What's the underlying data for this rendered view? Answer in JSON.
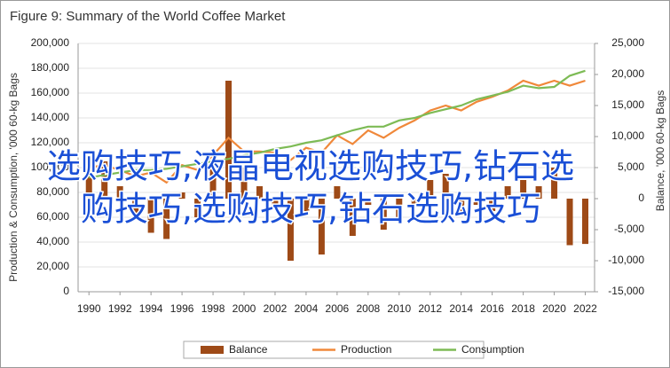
{
  "chart_data": {
    "type": "bar-line-combo",
    "title": "Figure 9: Summary of the World Coffee Market",
    "y_label": "Production & Consumption, '000 60-kg Bags",
    "y2_label": "Balance, '000 60-kg Bags",
    "x": [
      1990,
      1991,
      1992,
      1993,
      1994,
      1995,
      1996,
      1997,
      1998,
      1999,
      2000,
      2001,
      2002,
      2003,
      2004,
      2005,
      2006,
      2007,
      2008,
      2009,
      2010,
      2011,
      2012,
      2013,
      2014,
      2015,
      2016,
      2017,
      2018,
      2019,
      2020,
      2021,
      2022
    ],
    "xlim": [
      1989.3,
      2022.6
    ],
    "xticks": [
      1990,
      1992,
      1994,
      1996,
      1998,
      2000,
      2002,
      2004,
      2006,
      2008,
      2010,
      2012,
      2014,
      2016,
      2018,
      2020,
      2022
    ],
    "ylim": [
      0,
      200000
    ],
    "yticks": [
      0,
      {
        "value": 20000,
        "label": "20,000"
      },
      {
        "value": 40000,
        "label": "40,000"
      },
      {
        "value": 60000,
        "label": "60,000"
      },
      {
        "value": 80000,
        "label": "80,000"
      },
      {
        "value": 100000,
        "label": "100,000"
      },
      {
        "value": 120000,
        "label": "120,000"
      },
      {
        "value": 140000,
        "label": "140,000"
      },
      {
        "value": 160000,
        "label": "160,000"
      },
      {
        "value": 180000,
        "label": "180,000"
      },
      {
        "value": 200000,
        "label": "200,000"
      }
    ],
    "y2lim": [
      -15000,
      25000
    ],
    "y2ticks": [
      {
        "value": -15000,
        "label": "-15,000"
      },
      {
        "value": -10000,
        "label": "-10,000"
      },
      {
        "value": -5000,
        "label": "-5,000"
      },
      0,
      {
        "value": 5000,
        "label": "5,000"
      },
      {
        "value": 10000,
        "label": "10,000"
      },
      {
        "value": 15000,
        "label": "15,000"
      },
      {
        "value": 20000,
        "label": "20,000"
      },
      {
        "value": 25000,
        "label": "25,000"
      }
    ],
    "grid": true,
    "legend": "bottom",
    "series": [
      {
        "name": "Balance",
        "type": "bar",
        "axis": "y2",
        "color": "#9e4a17",
        "values": [
          5000,
          6000,
          2000,
          -3000,
          -5500,
          -6500,
          1000,
          -3000,
          5000,
          19000,
          5000,
          2000,
          -1000,
          -10000,
          -2000,
          -9000,
          2000,
          -6000,
          -1000,
          -5000,
          -3000,
          -1000,
          3000,
          4000,
          -2000,
          -1000,
          -2000,
          2000,
          3000,
          2000,
          5000,
          -7500,
          -7300
        ]
      },
      {
        "name": "Production",
        "type": "line",
        "color": "#f0883a",
        "values": [
          100000,
          102000,
          98000,
          93000,
          96000,
          88000,
          102000,
          98000,
          110000,
          124000,
          113000,
          113000,
          112000,
          106000,
          116000,
          112000,
          126000,
          119000,
          130000,
          124000,
          132000,
          138000,
          146000,
          150000,
          146000,
          153000,
          157000,
          162000,
          170000,
          166000,
          170000,
          166000,
          170000
        ]
      },
      {
        "name": "Consumption",
        "type": "line",
        "color": "#7dbb55",
        "values": [
          92000,
          94000,
          96000,
          98000,
          98000,
          99000,
          101000,
          103000,
          105000,
          107000,
          110000,
          112000,
          115000,
          117000,
          120000,
          122000,
          126000,
          130000,
          133000,
          133000,
          138000,
          140000,
          144000,
          147000,
          150000,
          155000,
          158000,
          161000,
          166000,
          164000,
          165000,
          174000,
          178000
        ]
      }
    ]
  },
  "overlay": {
    "lines": [
      "选购技巧,液晶电视选购技巧,钻石选",
      "购技巧,选购技巧,钻石选购技巧"
    ]
  }
}
